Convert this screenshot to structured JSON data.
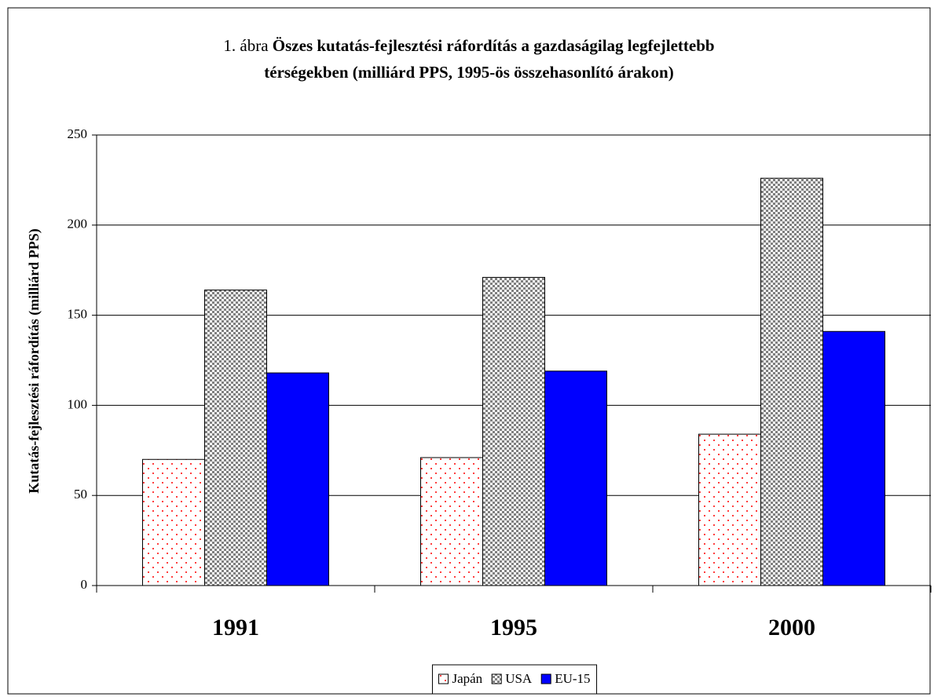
{
  "chart_data": {
    "type": "bar",
    "figure_label": "1. ábra",
    "title": [
      "Öszes kutatás-fejlesztési ráfordítás a gazdaságilag legfejlettebb",
      "térségekben (milliárd PPS, 1995-ös összehasonlító árakon)"
    ],
    "ylabel": "Kutatás-fejlesztési ráfordítás  (milliárd PPS)",
    "categories": [
      "1991",
      "1995",
      "2000"
    ],
    "series": [
      {
        "name": "Japán",
        "color": "#ff0000",
        "pattern": "dots",
        "values": [
          70,
          71,
          84
        ]
      },
      {
        "name": "USA",
        "color": "#808080",
        "pattern": "checker",
        "values": [
          164,
          171,
          226
        ]
      },
      {
        "name": "EU-15",
        "color": "#0000ff",
        "pattern": "solid",
        "values": [
          118,
          119,
          141
        ]
      }
    ],
    "ylim": [
      0,
      250
    ],
    "yticks": [
      0,
      50,
      100,
      150,
      200,
      250
    ],
    "grid": true,
    "legend": "bottom"
  }
}
